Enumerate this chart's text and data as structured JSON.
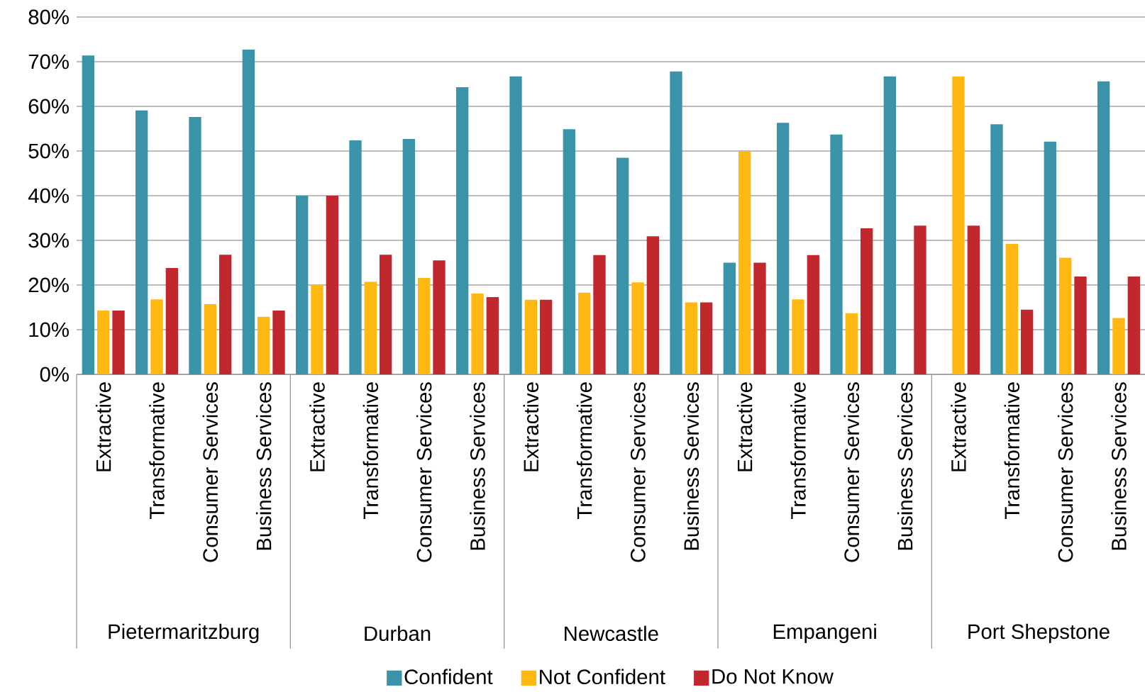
{
  "chart_data": {
    "type": "bar",
    "categories": [
      "Extractive",
      "Transformative",
      "Consumer Services",
      "Business Services",
      "Extractive",
      "Transformative",
      "Consumer Services",
      "Business Services",
      "Extractive",
      "Transformative",
      "Consumer Services",
      "Business Services",
      "Extractive",
      "Transformative",
      "Consumer Services",
      "Business Services",
      "Extractive",
      "Transformative",
      "Consumer Services",
      "Business Services"
    ],
    "series": [
      {
        "name": "Confident",
        "color": "#3a93a8",
        "values": [
          71.4,
          59.1,
          57.6,
          72.7,
          40,
          52.4,
          52.7,
          64.3,
          66.7,
          54.9,
          48.5,
          67.8,
          25,
          56.3,
          53.7,
          66.7,
          0,
          56,
          52.1,
          65.6
        ]
      },
      {
        "name": "Not Confident",
        "color": "#ffb711",
        "values": [
          14.3,
          16.8,
          15.7,
          12.9,
          20,
          20.7,
          21.6,
          18.1,
          16.7,
          18.3,
          20.6,
          16.1,
          50,
          16.8,
          13.7,
          0,
          66.7,
          29.2,
          26.1,
          12.6
        ]
      },
      {
        "name": "Do Not Know",
        "color": "#c0282e",
        "values": [
          14.3,
          23.8,
          26.8,
          14.3,
          40,
          26.8,
          25.5,
          17.3,
          16.7,
          26.7,
          30.9,
          16.1,
          25,
          26.7,
          32.7,
          33.3,
          33.3,
          14.5,
          21.9,
          21.9
        ]
      }
    ],
    "annotations": [
      "Pietermaritzburg",
      "Durban",
      "Newcastle",
      "Empangeni",
      "Port Shepstone"
    ],
    "ylim": [
      0,
      80
    ],
    "yticks": [
      {
        "value": 0,
        "label": "0%"
      },
      {
        "value": 10,
        "label": "10%"
      },
      {
        "value": 20,
        "label": "20%"
      },
      {
        "value": 30,
        "label": "30%"
      },
      {
        "value": 40,
        "label": "40%"
      },
      {
        "value": 50,
        "label": "50%"
      },
      {
        "value": 60,
        "label": "60%"
      },
      {
        "value": 70,
        "label": "70%"
      },
      {
        "value": 80,
        "label": "80%"
      }
    ],
    "grid": "y",
    "legend": "bottom"
  }
}
